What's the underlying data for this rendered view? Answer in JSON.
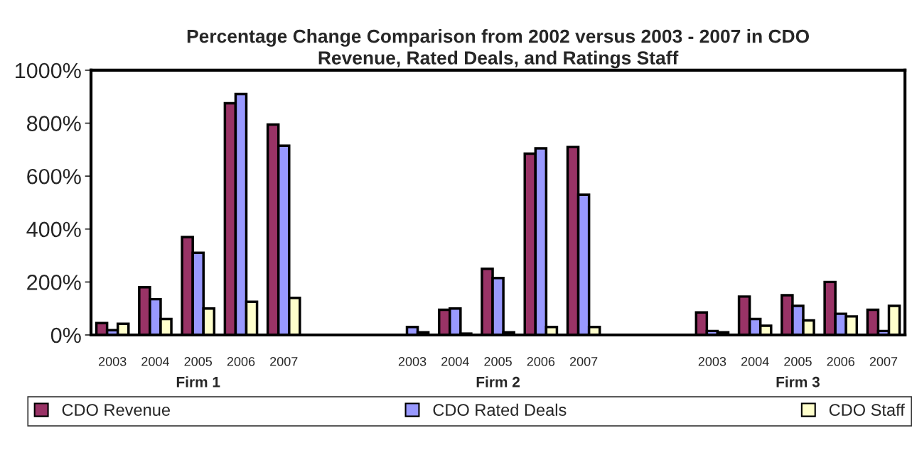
{
  "chart_data": {
    "type": "bar",
    "title": "Percentage Change Comparison from 2002 versus 2003 - 2007 in CDO\nRevenue, Rated Deals, and Ratings Staff",
    "categories": [
      "2003",
      "2004",
      "2005",
      "2006",
      "2007",
      null,
      null,
      "2003",
      "2004",
      "2005",
      "2006",
      "2007",
      null,
      null,
      "2003",
      "2004",
      "2005",
      "2006",
      "2007"
    ],
    "series": [
      {
        "name": "CDO Revenue",
        "color": "#993366",
        "values": [
          45,
          180,
          370,
          875,
          795,
          null,
          null,
          null,
          95,
          250,
          685,
          710,
          null,
          null,
          85,
          145,
          150,
          200,
          95
        ]
      },
      {
        "name": "CDO Rated Deals",
        "color": "#9999ff",
        "values": [
          18,
          135,
          310,
          910,
          715,
          null,
          null,
          30,
          100,
          215,
          705,
          530,
          null,
          null,
          15,
          60,
          110,
          80,
          15
        ]
      },
      {
        "name": "CDO Staff",
        "color": "#ffffcc",
        "values": [
          42,
          60,
          100,
          125,
          140,
          null,
          null,
          10,
          5,
          10,
          30,
          30,
          null,
          null,
          10,
          35,
          55,
          70,
          110
        ]
      }
    ],
    "annotations": [
      "Firm 1",
      "Firm 2",
      "Firm 3"
    ],
    "ylim": [
      0,
      1000
    ],
    "yticks": [
      {
        "value": 0,
        "label": "0%"
      },
      {
        "value": 200,
        "label": "200%"
      },
      {
        "value": 400,
        "label": "400%"
      },
      {
        "value": 600,
        "label": "600%"
      },
      {
        "value": 800,
        "label": "800%"
      },
      {
        "value": 1000,
        "label": "1000%"
      }
    ],
    "grid": false,
    "legend": "bottom"
  }
}
